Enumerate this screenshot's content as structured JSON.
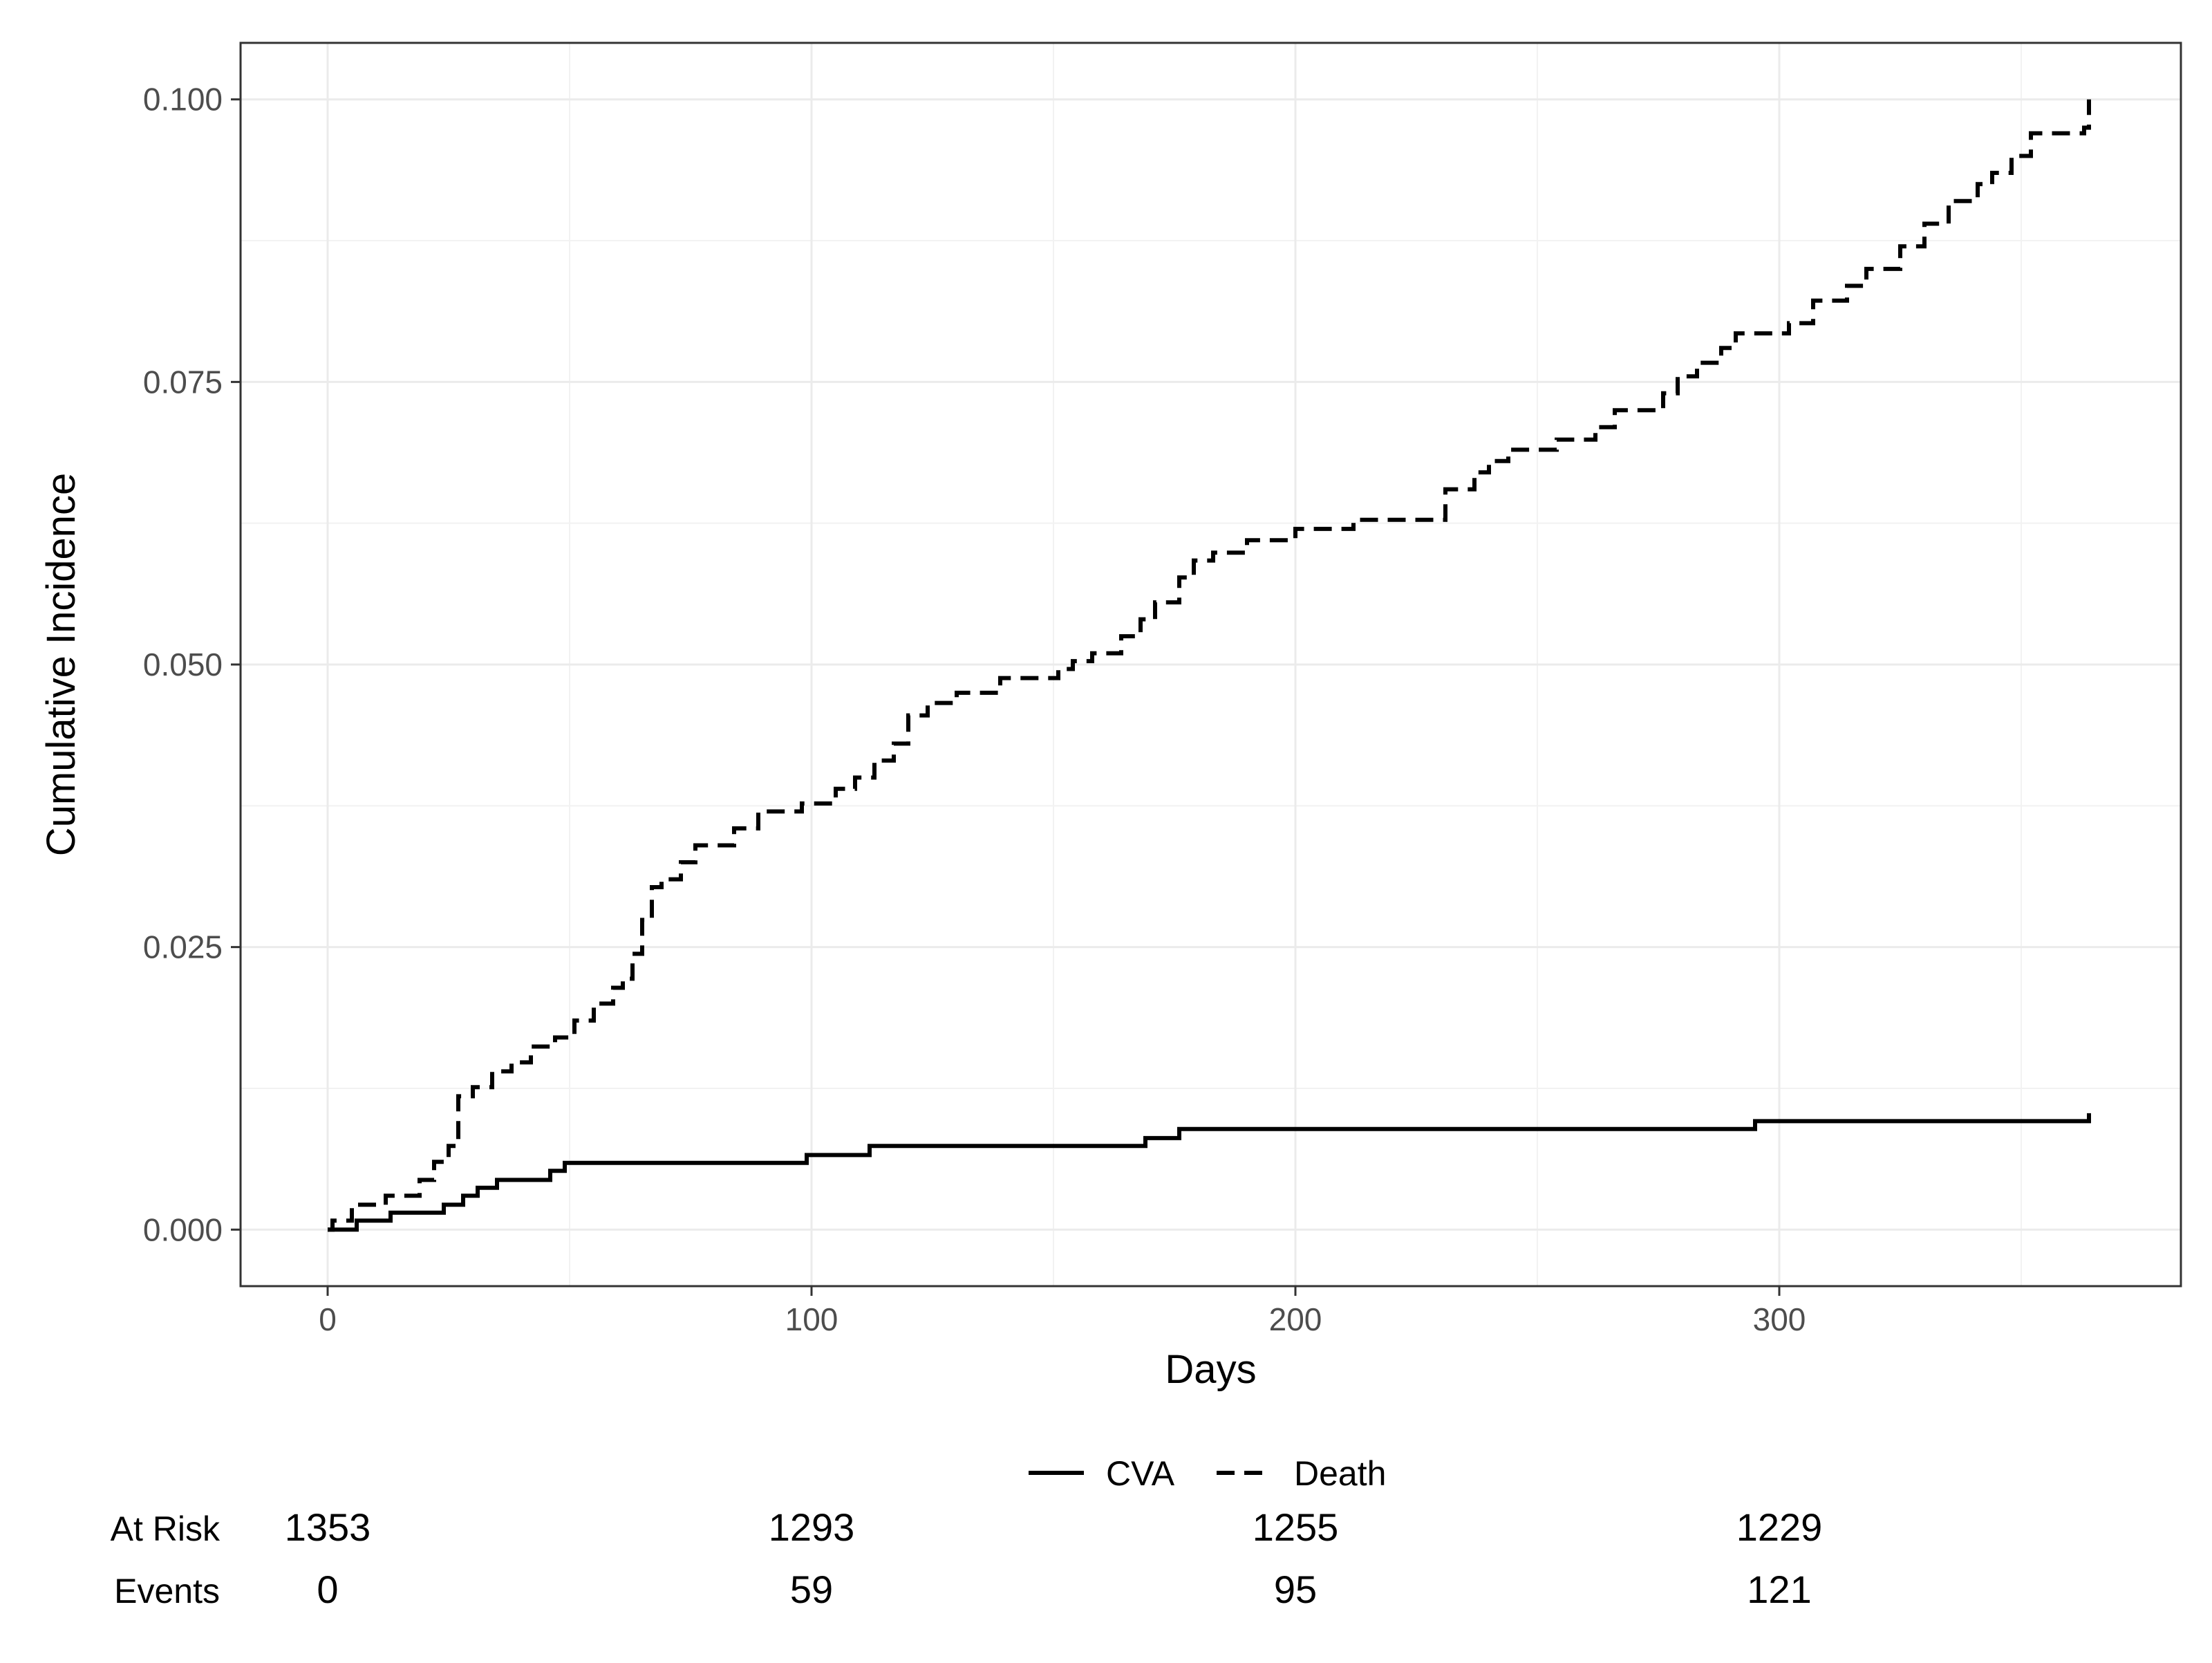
{
  "chart_data": {
    "type": "line",
    "step": true,
    "xlabel": "Days",
    "ylabel": "Cumulative Incidence",
    "xlim": [
      -18,
      383
    ],
    "ylim": [
      -0.005,
      0.105
    ],
    "x_ticks": [
      0,
      100,
      200,
      300
    ],
    "x_tick_labels": [
      "0",
      "100",
      "200",
      "300"
    ],
    "y_ticks": [
      0,
      0.025,
      0.05,
      0.075,
      0.1
    ],
    "y_tick_labels": [
      "0.000",
      "0.025",
      "0.050",
      "0.075",
      "0.100"
    ],
    "grid": true,
    "legend_position": "bottom",
    "series": [
      {
        "name": "CVA",
        "line_style": "solid",
        "color": "#000000",
        "x": [
          0,
          6,
          13,
          24,
          28,
          31,
          35,
          46,
          49,
          99,
          112,
          169,
          176,
          295,
          363,
          364
        ],
        "y": [
          0.0,
          0.0008,
          0.0015,
          0.0022,
          0.003,
          0.0037,
          0.0044,
          0.0052,
          0.0059,
          0.0066,
          0.0074,
          0.0081,
          0.0089,
          0.0096,
          0.0096,
          0.0103
        ]
      },
      {
        "name": "Death",
        "line_style": "dashed",
        "color": "#000000",
        "x": [
          0,
          1,
          5,
          12,
          19,
          22,
          25,
          27,
          30,
          34,
          38,
          42,
          47,
          51,
          55,
          59,
          61,
          63,
          65,
          67,
          69,
          73,
          76,
          84,
          89,
          98,
          105,
          109,
          113,
          117,
          120,
          124,
          130,
          139,
          151,
          154,
          158,
          164,
          168,
          171,
          176,
          179,
          183,
          190,
          200,
          212,
          218,
          231,
          237,
          240,
          244,
          254,
          262,
          266,
          276,
          279,
          283,
          288,
          291,
          302,
          307,
          314,
          318,
          325,
          330,
          335,
          341,
          344,
          348,
          352,
          363,
          364
        ],
        "y": [
          0.0,
          0.0008,
          0.0022,
          0.003,
          0.0044,
          0.006,
          0.0074,
          0.0118,
          0.0126,
          0.014,
          0.0148,
          0.0162,
          0.017,
          0.0185,
          0.02,
          0.0214,
          0.0222,
          0.0244,
          0.0274,
          0.0303,
          0.031,
          0.0325,
          0.034,
          0.0355,
          0.037,
          0.0377,
          0.039,
          0.04,
          0.0415,
          0.043,
          0.0455,
          0.0466,
          0.0475,
          0.0488,
          0.0496,
          0.0503,
          0.051,
          0.0525,
          0.054,
          0.0555,
          0.0577,
          0.0592,
          0.0599,
          0.061,
          0.062,
          0.0628,
          0.0628,
          0.0655,
          0.067,
          0.068,
          0.069,
          0.0699,
          0.071,
          0.0725,
          0.074,
          0.0755,
          0.0767,
          0.078,
          0.0793,
          0.0802,
          0.0822,
          0.0835,
          0.085,
          0.087,
          0.089,
          0.091,
          0.0925,
          0.0935,
          0.095,
          0.097,
          0.0975,
          0.1
        ]
      }
    ],
    "risk_table": {
      "row_labels": [
        "At Risk",
        "Events"
      ],
      "times": [
        0,
        100,
        200,
        300
      ],
      "at_risk": [
        "1353",
        "1293",
        "1255",
        "1229"
      ],
      "events": [
        "0",
        "59",
        "95",
        "121"
      ]
    }
  }
}
